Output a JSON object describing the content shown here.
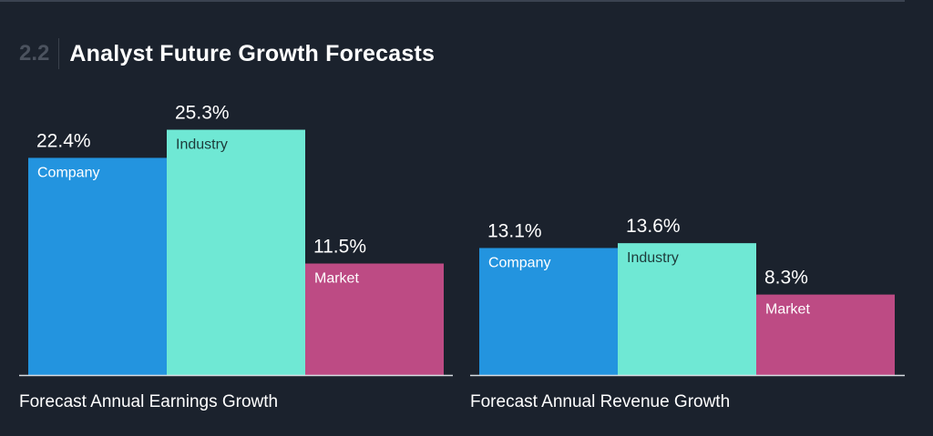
{
  "section": {
    "number": "2.2",
    "title": "Analyst Future Growth Forecasts"
  },
  "colors": {
    "background": "#1b222d",
    "company": "#2394df",
    "industry": "#6fe8d4",
    "market": "#bd4b84",
    "axis": "#d8dde3"
  },
  "chart_data": [
    {
      "type": "bar",
      "title": "Forecast Annual Earnings Growth",
      "categories": [
        "Company",
        "Industry",
        "Market"
      ],
      "values": [
        22.4,
        25.3,
        11.5
      ],
      "value_labels": [
        "22.4%",
        "25.3%",
        "11.5%"
      ],
      "unit": "%",
      "ylim": [
        0,
        29.2
      ],
      "grid": false,
      "legend": "none"
    },
    {
      "type": "bar",
      "title": "Forecast Annual Revenue Growth",
      "categories": [
        "Company",
        "Industry",
        "Market"
      ],
      "values": [
        13.1,
        13.6,
        8.3
      ],
      "value_labels": [
        "13.1%",
        "13.6%",
        "8.3%"
      ],
      "unit": "%",
      "ylim": [
        0,
        29.2
      ],
      "grid": false,
      "legend": "none"
    }
  ]
}
